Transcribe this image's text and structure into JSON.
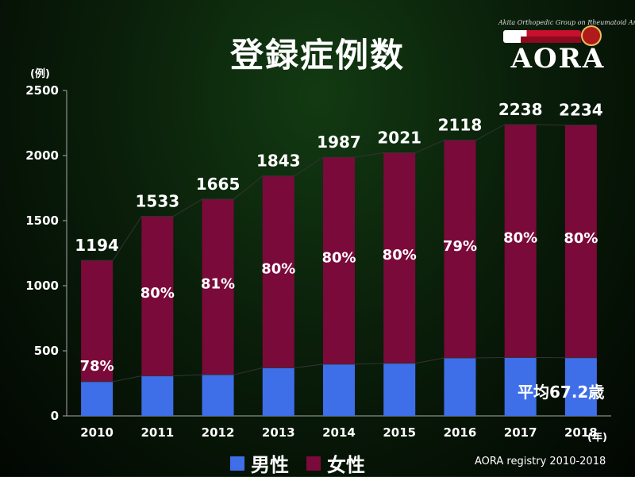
{
  "title": "登録症例数",
  "logo": {
    "caption": "Akita Orthopedic Group on Rheumatoid Arthritis",
    "text": "AORA"
  },
  "colors": {
    "male": "#3f6fe8",
    "female": "#7a0a3a",
    "label": "#ffffff",
    "axis": "#aaaaaa"
  },
  "annotations": {
    "average_age": "平均67.2歳",
    "source": "AORA registry 2010-2018"
  },
  "chart_data": {
    "type": "bar",
    "stacked": true,
    "title": "登録症例数",
    "ylabel": "(例)",
    "xlabel": "(年)",
    "ylim": [
      0,
      2500
    ],
    "yticks": [
      "0",
      "500",
      "1000",
      "1500",
      "2000",
      "2500"
    ],
    "categories": [
      "2010",
      "2011",
      "2012",
      "2013",
      "2014",
      "2015",
      "2016",
      "2017",
      "2018"
    ],
    "totals": [
      1194,
      1533,
      1665,
      1843,
      1987,
      2021,
      2118,
      2238,
      2234
    ],
    "total_labels": [
      "1194",
      "1533",
      "1665",
      "1843",
      "1987",
      "2021",
      "2118",
      "2238",
      "2234"
    ],
    "female_pct_labels": [
      "78%",
      "80%",
      "81%",
      "80%",
      "80%",
      "80%",
      "79%",
      "80%",
      "80%"
    ],
    "series": [
      {
        "name": "男性",
        "values": [
          263,
          307,
          316,
          369,
          397,
          404,
          445,
          448,
          447
        ]
      },
      {
        "name": "女性",
        "values": [
          931,
          1226,
          1349,
          1474,
          1590,
          1617,
          1673,
          1790,
          1787
        ]
      }
    ],
    "legend": [
      "男性",
      "女性"
    ]
  }
}
